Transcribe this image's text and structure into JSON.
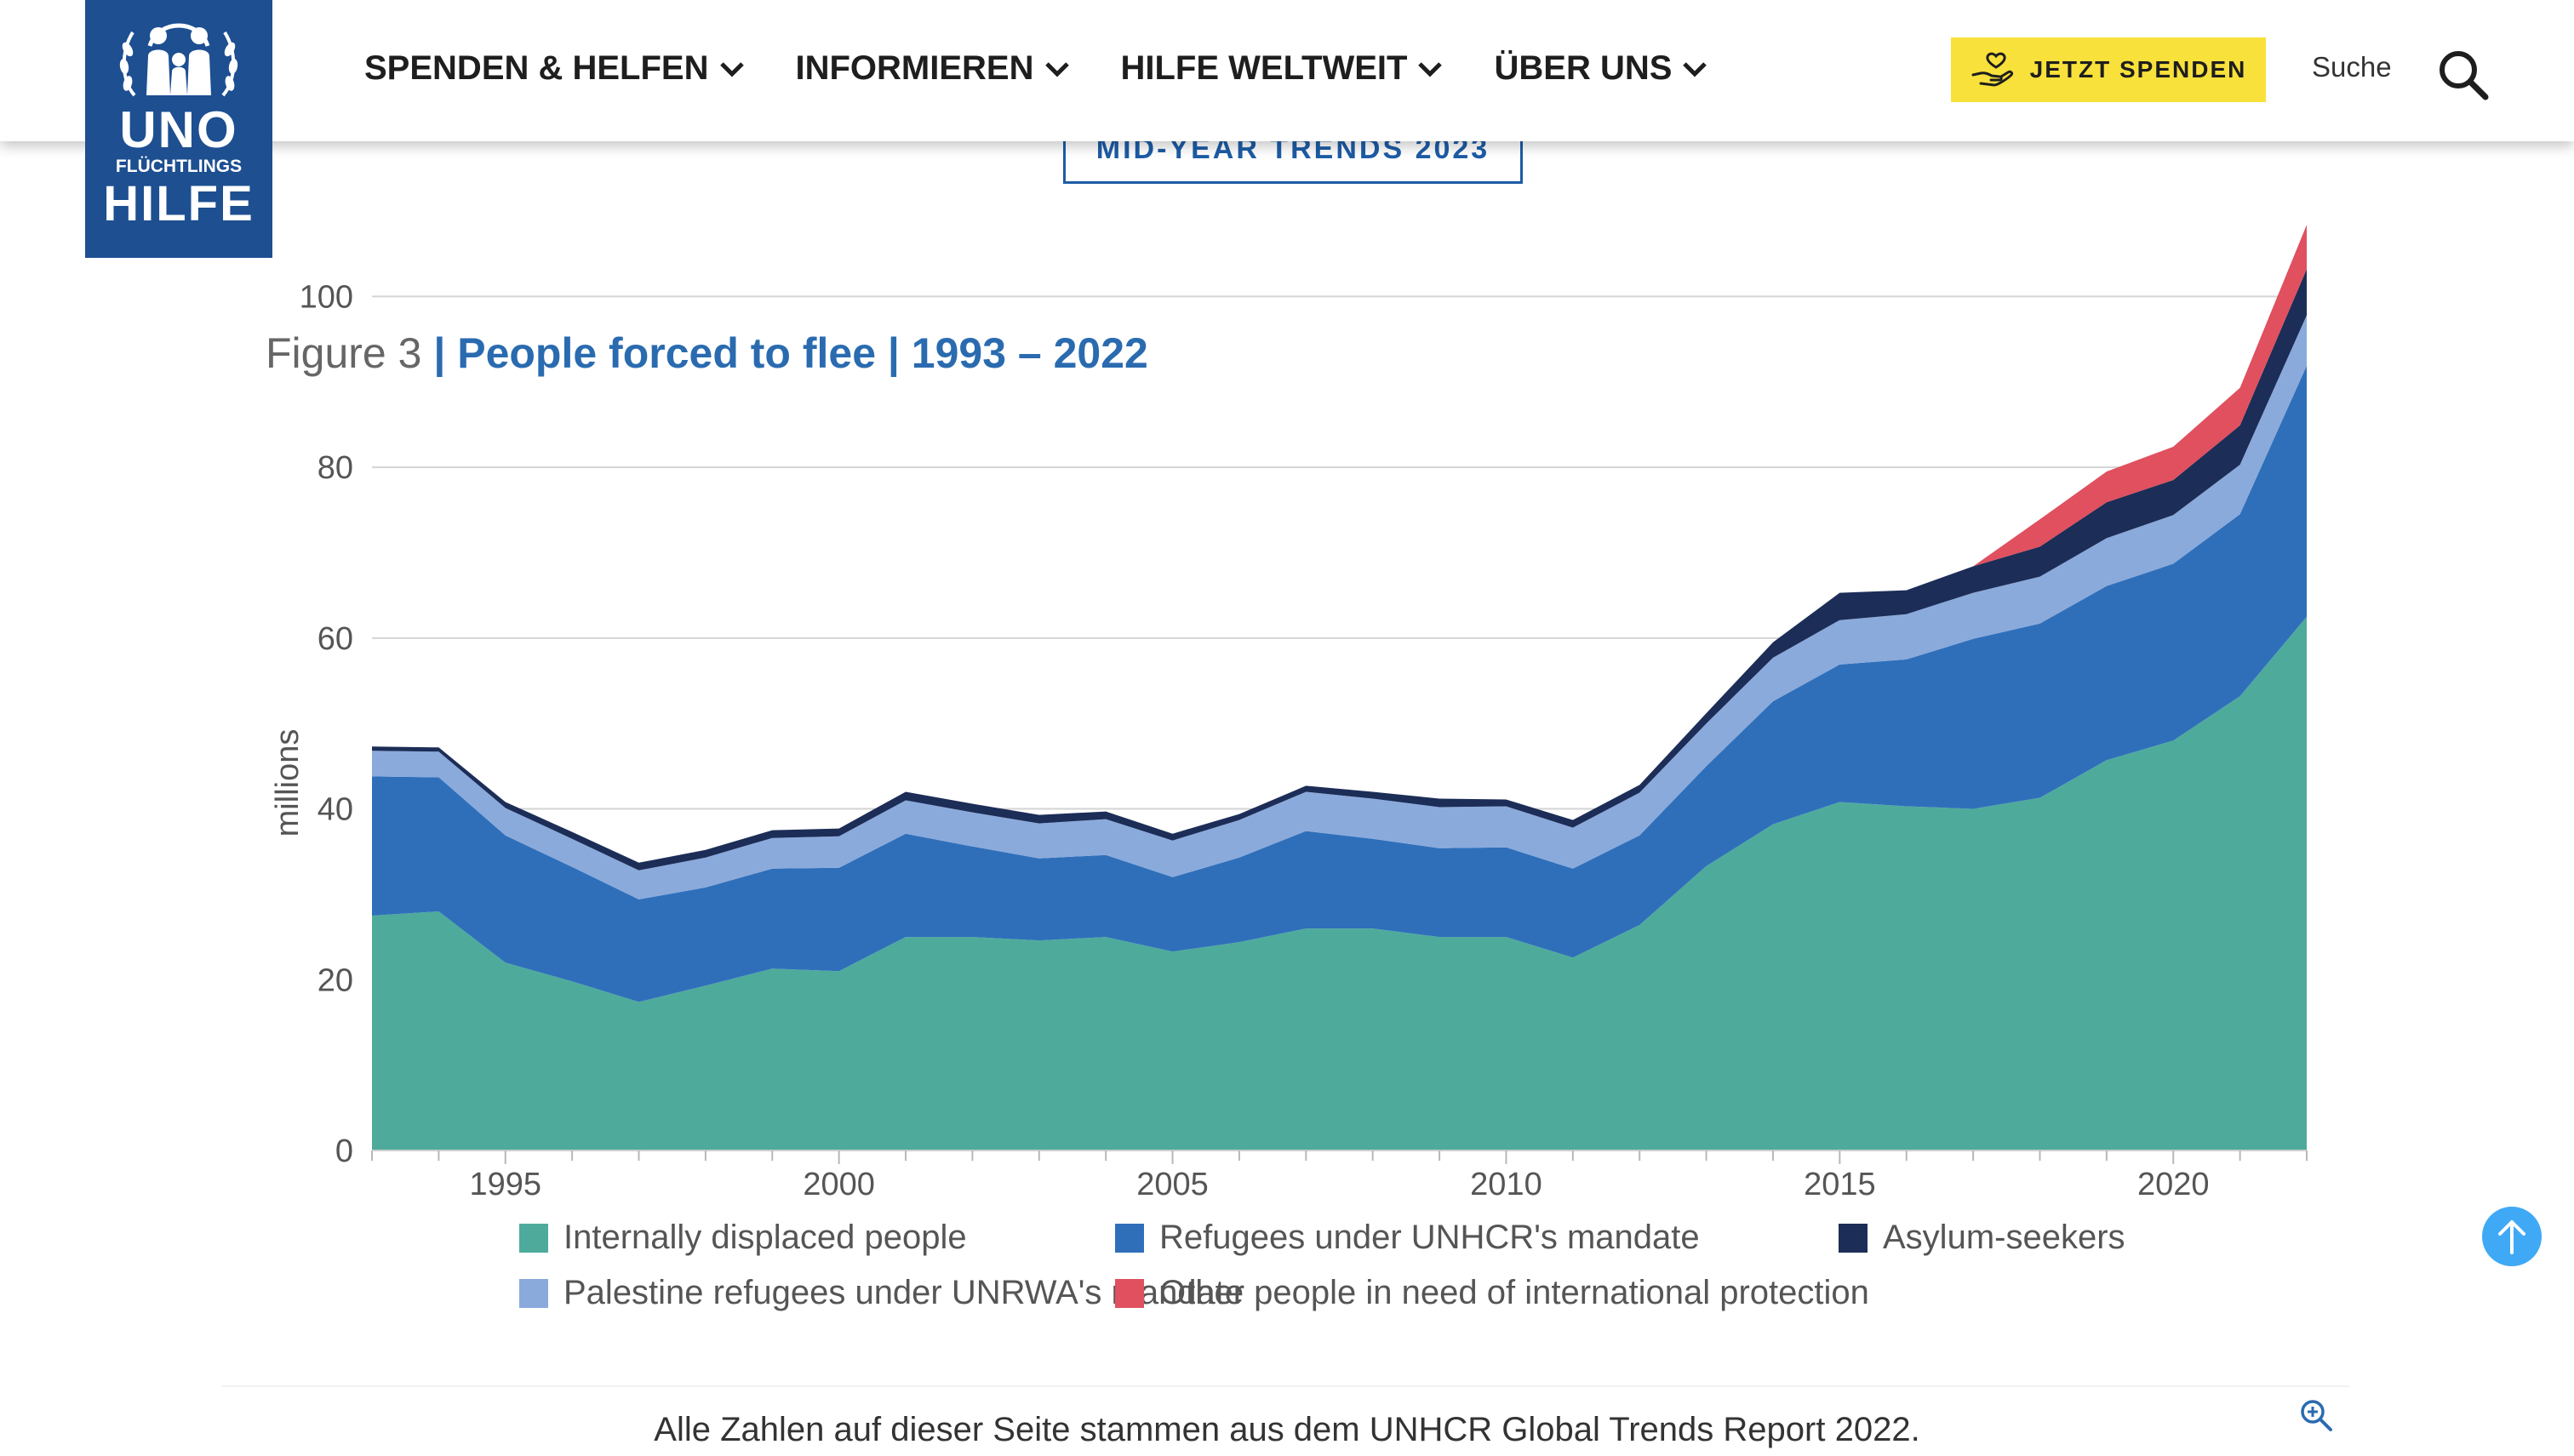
{
  "header": {
    "logo": {
      "line1": "UNO",
      "line2": "FLÜCHTLINGS",
      "line3": "HILFE"
    },
    "nav": [
      {
        "label": "SPENDEN & HELFEN"
      },
      {
        "label": "INFORMIEREN"
      },
      {
        "label": "HILFE WELTWEIT"
      },
      {
        "label": "ÜBER UNS"
      }
    ],
    "donate_label": "JETZT SPENDEN",
    "search_label": "Suche"
  },
  "badge": "MID-YEAR TRENDS 2023",
  "figure": {
    "number": "Figure 3",
    "title": "| People forced to flee | 1993 – 2022"
  },
  "caption": "Alle Zahlen auf dieser Seite stammen aus dem UNHCR Global Trends Report 2022.",
  "colors": {
    "idp": "#4eab9c",
    "refugees": "#2f6fba",
    "palestine": "#8aaadc",
    "asylum": "#1c2d57",
    "other": "#e0505f",
    "brand": "#1d4f91",
    "donate": "#f9e13b"
  },
  "chart_data": {
    "type": "area",
    "stacked": true,
    "title": "Figure 3 | People forced to flee | 1993 – 2022",
    "ylabel": "millions",
    "xlabel": "",
    "ylim": [
      0,
      110
    ],
    "yticks": [
      0,
      20,
      40,
      60,
      80,
      100
    ],
    "xticks": [
      1995,
      2000,
      2005,
      2010,
      2015,
      2020
    ],
    "x": [
      1993,
      1994,
      1995,
      1996,
      1997,
      1998,
      1999,
      2000,
      2001,
      2002,
      2003,
      2004,
      2005,
      2006,
      2007,
      2008,
      2009,
      2010,
      2011,
      2012,
      2013,
      2014,
      2015,
      2016,
      2017,
      2018,
      2019,
      2020,
      2021,
      2022
    ],
    "grid": true,
    "legend_position": "bottom",
    "series": [
      {
        "name": "Internally displaced people",
        "color": "#4eab9c",
        "values": [
          27.5,
          28.0,
          22.0,
          19.8,
          17.4,
          19.3,
          21.3,
          21.0,
          25.0,
          25.0,
          24.6,
          25.0,
          23.3,
          24.4,
          26.0,
          26.0,
          25.0,
          25.0,
          22.6,
          26.4,
          33.3,
          38.2,
          40.8,
          40.3,
          40.0,
          41.3,
          45.7,
          48.0,
          53.2,
          62.5
        ]
      },
      {
        "name": "Refugees under UNHCR's mandate",
        "color": "#2f6fba",
        "values": [
          16.3,
          15.7,
          14.9,
          13.4,
          12.0,
          11.5,
          11.7,
          12.1,
          12.1,
          10.6,
          9.6,
          9.6,
          8.7,
          9.9,
          11.4,
          10.5,
          10.4,
          10.5,
          10.4,
          10.5,
          11.7,
          14.4,
          16.1,
          17.2,
          19.9,
          20.4,
          20.4,
          20.7,
          21.3,
          29.4
        ]
      },
      {
        "name": "Palestine refugees under UNRWA's mandate",
        "color": "#8aaadc",
        "values": [
          3.0,
          3.0,
          3.2,
          3.3,
          3.4,
          3.5,
          3.6,
          3.7,
          3.9,
          4.0,
          4.1,
          4.2,
          4.3,
          4.4,
          4.6,
          4.7,
          4.8,
          4.8,
          4.8,
          5.0,
          5.0,
          5.1,
          5.2,
          5.3,
          5.4,
          5.5,
          5.6,
          5.7,
          5.8,
          5.9
        ]
      },
      {
        "name": "Asylum-seekers",
        "color": "#1c2d57",
        "values": [
          0.5,
          0.5,
          0.7,
          0.8,
          0.9,
          0.9,
          0.9,
          0.9,
          1.0,
          1.0,
          1.0,
          0.9,
          0.8,
          0.7,
          0.7,
          0.8,
          1.0,
          0.8,
          0.9,
          0.9,
          1.2,
          1.8,
          3.2,
          2.8,
          3.1,
          3.5,
          4.2,
          4.1,
          4.6,
          5.4
        ]
      },
      {
        "name": "Other people in need of international protection",
        "color": "#e0505f",
        "values": [
          0,
          0,
          0,
          0,
          0,
          0,
          0,
          0,
          0,
          0,
          0,
          0,
          0,
          0,
          0,
          0,
          0,
          0,
          0,
          0,
          0,
          0,
          0,
          0,
          0,
          3.2,
          3.6,
          3.9,
          4.4,
          5.2
        ]
      }
    ],
    "legend_order": [
      "Internally displaced people",
      "Refugees under UNHCR's mandate",
      "Asylum-seekers",
      "Palestine refugees under UNRWA's mandate",
      "Other people in need of international protection"
    ]
  }
}
